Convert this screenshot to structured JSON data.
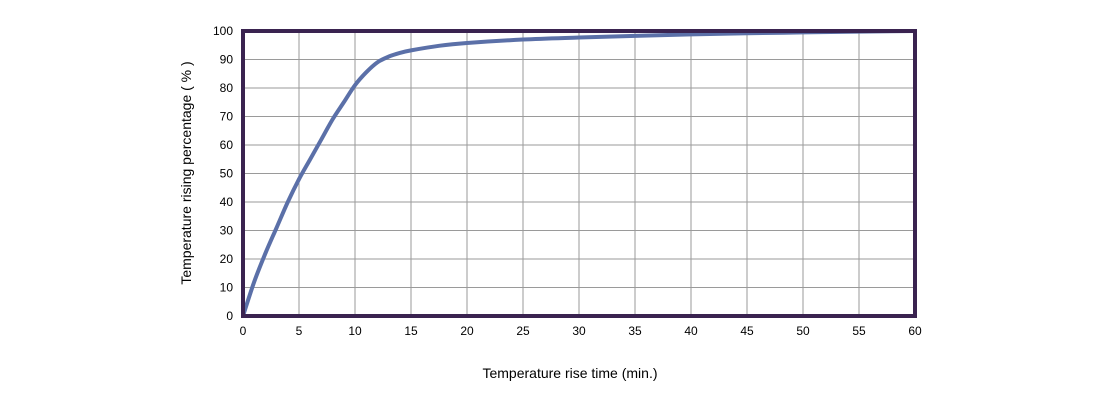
{
  "chart_data": {
    "type": "line",
    "title": "",
    "xlabel": "Temperature rise time (min.)",
    "ylabel": "Temperature rising percentage ( % )",
    "xlim": [
      0,
      60
    ],
    "ylim": [
      0,
      100
    ],
    "x_ticks": [
      0,
      5,
      10,
      15,
      20,
      25,
      30,
      35,
      40,
      45,
      50,
      55,
      60
    ],
    "y_ticks": [
      0,
      10,
      20,
      30,
      40,
      50,
      60,
      70,
      80,
      90,
      100
    ],
    "grid": true,
    "legend": null,
    "series": [
      {
        "name": "Temperature rising percentage",
        "color": "#5b70a8",
        "x": [
          0,
          1,
          2,
          3,
          4,
          5,
          6,
          7,
          8,
          9,
          10,
          11,
          12,
          13,
          14,
          15,
          17.5,
          20,
          25,
          30,
          35,
          40,
          45,
          50,
          55,
          60
        ],
        "y": [
          0,
          12,
          22,
          31,
          40,
          48,
          55,
          62,
          69,
          75,
          81,
          85.5,
          89,
          91,
          92.3,
          93.2,
          94.8,
          95.8,
          97,
          97.7,
          98.3,
          98.8,
          99.2,
          99.5,
          99.8,
          100
        ]
      }
    ]
  },
  "colors": {
    "frame": "#3a2350",
    "grid": "#9a9a9a",
    "line": "#5b70a8"
  }
}
